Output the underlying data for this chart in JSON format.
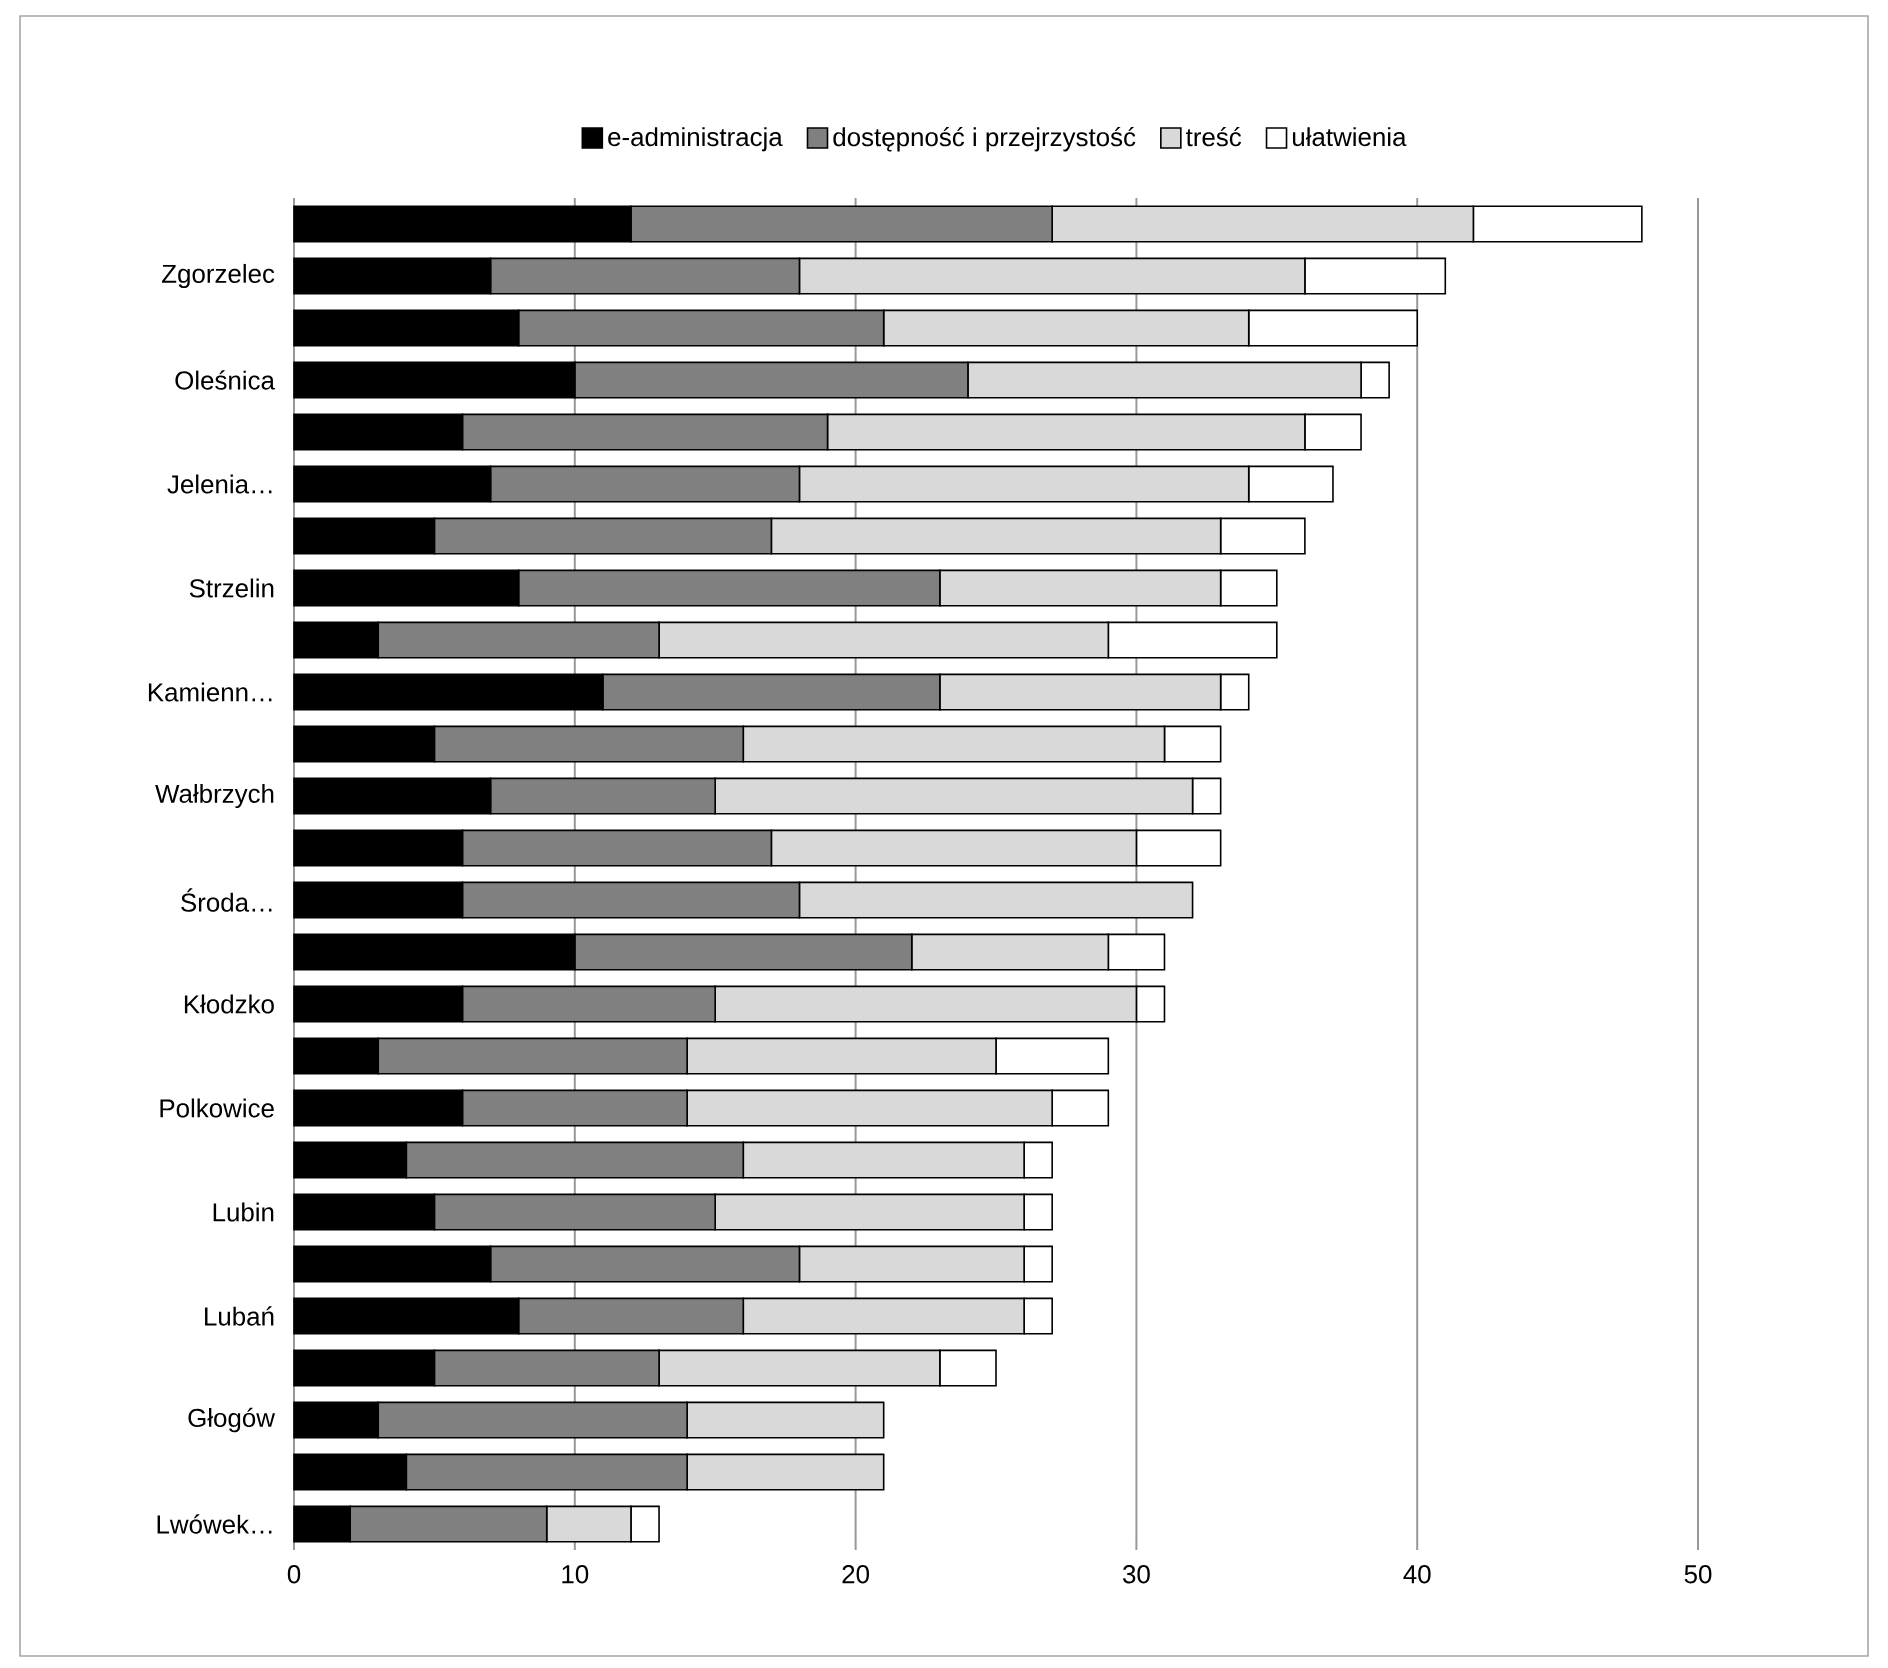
{
  "chart_data": {
    "type": "bar",
    "orientation": "horizontal",
    "stacked": true,
    "categories": [
      null,
      "Zgorzelec",
      null,
      "Oleśnica",
      null,
      "Jelenia…",
      null,
      "Strzelin",
      null,
      "Kamienn…",
      null,
      "Wałbrzych",
      null,
      "Środa…",
      null,
      "Kłodzko",
      null,
      "Polkowice",
      null,
      "Lubin",
      null,
      "Lubań",
      null,
      "Głogów",
      null,
      "Lwówek…"
    ],
    "series": [
      {
        "name": "e-administracja",
        "color": "#000000",
        "values": [
          12,
          7,
          8,
          10,
          6,
          7,
          5,
          8,
          3,
          11,
          5,
          7,
          6,
          6,
          10,
          6,
          3,
          6,
          4,
          5,
          7,
          8,
          5,
          3,
          4,
          2
        ]
      },
      {
        "name": "dostępność i przejrzystość",
        "color": "#808080",
        "values": [
          15,
          11,
          13,
          14,
          13,
          11,
          12,
          15,
          10,
          12,
          11,
          8,
          11,
          12,
          12,
          9,
          11,
          8,
          12,
          10,
          11,
          8,
          8,
          11,
          10,
          7
        ]
      },
      {
        "name": "treść",
        "color": "#d9d9d9",
        "values": [
          15,
          18,
          13,
          14,
          17,
          16,
          16,
          10,
          16,
          10,
          15,
          17,
          13,
          14,
          7,
          15,
          11,
          13,
          10,
          11,
          8,
          10,
          10,
          7,
          7,
          3
        ]
      },
      {
        "name": "ułatwienia",
        "color": "#ffffff",
        "values": [
          6,
          5,
          6,
          1,
          2,
          3,
          3,
          2,
          6,
          1,
          2,
          1,
          3,
          0,
          2,
          1,
          4,
          2,
          1,
          1,
          1,
          1,
          2,
          0,
          0,
          1
        ]
      }
    ],
    "xlim": [
      0,
      50
    ],
    "xticks": [
      0,
      10,
      20,
      30,
      40,
      50
    ],
    "grid": "x",
    "legend": "top"
  }
}
